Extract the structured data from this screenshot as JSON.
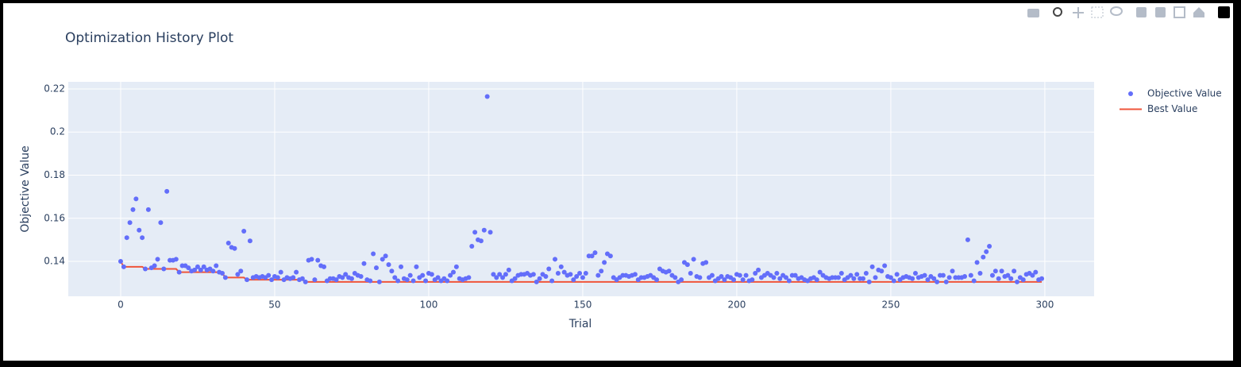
{
  "chart_data": {
    "type": "scatter-line",
    "title": "Optimization History Plot",
    "x_label": "Trial",
    "y_label": "Objective Value",
    "xlim": [
      -17,
      316
    ],
    "ylim": [
      0.1238,
      0.2233
    ],
    "xticks": [
      0,
      50,
      100,
      150,
      200,
      250,
      300
    ],
    "yticks": [
      0.14,
      0.16,
      0.18,
      0.2,
      0.22
    ],
    "grid": true,
    "legend": "right",
    "x": [
      0,
      1,
      2,
      3,
      4,
      5,
      6,
      7,
      8,
      9,
      10,
      11,
      12,
      13,
      14,
      15,
      16,
      17,
      18,
      19,
      20,
      21,
      22,
      23,
      24,
      25,
      26,
      27,
      28,
      29,
      30,
      31,
      32,
      33,
      34,
      35,
      36,
      37,
      38,
      39,
      40,
      41,
      42,
      43,
      44,
      45,
      46,
      47,
      48,
      49,
      50,
      51,
      52,
      53,
      54,
      55,
      56,
      57,
      58,
      59,
      60,
      61,
      62,
      63,
      64,
      65,
      66,
      67,
      68,
      69,
      70,
      71,
      72,
      73,
      74,
      75,
      76,
      77,
      78,
      79,
      80,
      81,
      82,
      83,
      84,
      85,
      86,
      87,
      88,
      89,
      90,
      91,
      92,
      93,
      94,
      95,
      96,
      97,
      98,
      99,
      100,
      101,
      102,
      103,
      104,
      105,
      106,
      107,
      108,
      109,
      110,
      111,
      112,
      113,
      114,
      115,
      116,
      117,
      118,
      119,
      120,
      121,
      122,
      123,
      124,
      125,
      126,
      127,
      128,
      129,
      130,
      131,
      132,
      133,
      134,
      135,
      136,
      137,
      138,
      139,
      140,
      141,
      142,
      143,
      144,
      145,
      146,
      147,
      148,
      149,
      150,
      151,
      152,
      153,
      154,
      155,
      156,
      157,
      158,
      159,
      160,
      161,
      162,
      163,
      164,
      165,
      166,
      167,
      168,
      169,
      170,
      171,
      172,
      173,
      174,
      175,
      176,
      177,
      178,
      179,
      180,
      181,
      182,
      183,
      184,
      185,
      186,
      187,
      188,
      189,
      190,
      191,
      192,
      193,
      194,
      195,
      196,
      197,
      198,
      199,
      200,
      201,
      202,
      203,
      204,
      205,
      206,
      207,
      208,
      209,
      210,
      211,
      212,
      213,
      214,
      215,
      216,
      217,
      218,
      219,
      220,
      221,
      222,
      223,
      224,
      225,
      226,
      227,
      228,
      229,
      230,
      231,
      232,
      233,
      234,
      235,
      236,
      237,
      238,
      239,
      240,
      241,
      242,
      243,
      244,
      245,
      246,
      247,
      248,
      249,
      250,
      251,
      252,
      253,
      254,
      255,
      256,
      257,
      258,
      259,
      260,
      261,
      262,
      263,
      264,
      265,
      266,
      267,
      268,
      269,
      270,
      271,
      272,
      273,
      274,
      275,
      276,
      277,
      278,
      279,
      280,
      281,
      282,
      283,
      284,
      285,
      286,
      287,
      288,
      289,
      290,
      291,
      292,
      293,
      294,
      295,
      296,
      297,
      298,
      299
    ],
    "series": [
      {
        "name": "Objective Value",
        "color": "#636efa",
        "mode": "markers",
        "values": [
          0.14,
          0.1375,
          0.151,
          0.158,
          0.164,
          0.169,
          0.1545,
          0.151,
          0.1365,
          0.164,
          0.137,
          0.138,
          0.141,
          0.158,
          0.1365,
          0.1725,
          0.1405,
          0.1405,
          0.141,
          0.135,
          0.138,
          0.138,
          0.137,
          0.1355,
          0.136,
          0.1375,
          0.136,
          0.1375,
          0.136,
          0.1365,
          0.1355,
          0.138,
          0.135,
          0.1345,
          0.1325,
          0.1485,
          0.1465,
          0.146,
          0.134,
          0.1355,
          0.154,
          0.1315,
          0.1495,
          0.1325,
          0.133,
          0.1325,
          0.133,
          0.1325,
          0.1335,
          0.1315,
          0.133,
          0.1325,
          0.135,
          0.1315,
          0.1325,
          0.132,
          0.1325,
          0.135,
          0.1315,
          0.132,
          0.1305,
          0.1405,
          0.141,
          0.1315,
          0.1405,
          0.138,
          0.1375,
          0.131,
          0.132,
          0.132,
          0.1315,
          0.133,
          0.1325,
          0.134,
          0.1325,
          0.132,
          0.1345,
          0.1335,
          0.133,
          0.139,
          0.1315,
          0.131,
          0.1435,
          0.137,
          0.1305,
          0.141,
          0.1425,
          0.1385,
          0.1355,
          0.1325,
          0.131,
          0.1375,
          0.132,
          0.1315,
          0.1335,
          0.131,
          0.1375,
          0.1325,
          0.1335,
          0.131,
          0.1345,
          0.134,
          0.1315,
          0.1325,
          0.131,
          0.132,
          0.131,
          0.1335,
          0.135,
          0.1375,
          0.132,
          0.1315,
          0.132,
          0.1325,
          0.147,
          0.1535,
          0.15,
          0.1495,
          0.1545,
          0.2165,
          0.1535,
          0.134,
          0.1325,
          0.134,
          0.1325,
          0.134,
          0.136,
          0.131,
          0.132,
          0.1335,
          0.134,
          0.134,
          0.1345,
          0.1335,
          0.134,
          0.1305,
          0.132,
          0.134,
          0.133,
          0.1365,
          0.131,
          0.141,
          0.1345,
          0.1375,
          0.135,
          0.1335,
          0.134,
          0.1315,
          0.133,
          0.1345,
          0.1325,
          0.1345,
          0.1425,
          0.1425,
          0.144,
          0.1335,
          0.1355,
          0.1395,
          0.1435,
          0.1425,
          0.1325,
          0.1315,
          0.1325,
          0.1335,
          0.1335,
          0.133,
          0.1335,
          0.134,
          0.1315,
          0.1325,
          0.1325,
          0.133,
          0.1335,
          0.1325,
          0.1315,
          0.1365,
          0.1355,
          0.135,
          0.1355,
          0.1335,
          0.1325,
          0.1305,
          0.1315,
          0.1395,
          0.1385,
          0.1345,
          0.141,
          0.133,
          0.1325,
          0.139,
          0.1395,
          0.1325,
          0.1335,
          0.131,
          0.132,
          0.133,
          0.1315,
          0.133,
          0.1325,
          0.1315,
          0.134,
          0.1335,
          0.1315,
          0.1335,
          0.131,
          0.1315,
          0.1345,
          0.136,
          0.1325,
          0.1335,
          0.1345,
          0.1335,
          0.1325,
          0.1345,
          0.132,
          0.1335,
          0.1325,
          0.131,
          0.1335,
          0.1335,
          0.132,
          0.1325,
          0.1315,
          0.131,
          0.132,
          0.1325,
          0.1315,
          0.135,
          0.1335,
          0.1325,
          0.132,
          0.1325,
          0.1325,
          0.1325,
          0.1345,
          0.1315,
          0.1325,
          0.1335,
          0.132,
          0.134,
          0.132,
          0.132,
          0.1345,
          0.1305,
          0.1375,
          0.1325,
          0.136,
          0.1355,
          0.138,
          0.133,
          0.1325,
          0.131,
          0.134,
          0.1315,
          0.1325,
          0.133,
          0.1325,
          0.132,
          0.1345,
          0.1325,
          0.133,
          0.1335,
          0.1315,
          0.133,
          0.132,
          0.1305,
          0.1335,
          0.1335,
          0.1305,
          0.1325,
          0.1355,
          0.1325,
          0.1325,
          0.1325,
          0.133,
          0.15,
          0.1335,
          0.131,
          0.1395,
          0.1345,
          0.142,
          0.1445,
          0.147,
          0.1335,
          0.1355,
          0.132,
          0.1355,
          0.133,
          0.1335,
          0.132,
          0.1355,
          0.1305,
          0.1325,
          0.1315,
          0.134,
          0.1345,
          0.1335,
          0.135,
          0.1315,
          0.132
        ]
      },
      {
        "name": "Best Value",
        "color": "#ef553b",
        "mode": "lines",
        "values": [
          0.14,
          0.1375,
          0.1375,
          0.1375,
          0.1375,
          0.1375,
          0.1375,
          0.1375,
          0.1365,
          0.1365,
          0.1365,
          0.1365,
          0.1365,
          0.1365,
          0.1365,
          0.1365,
          0.1365,
          0.1365,
          0.1365,
          0.135,
          0.135,
          0.135,
          0.135,
          0.135,
          0.135,
          0.135,
          0.135,
          0.135,
          0.135,
          0.135,
          0.135,
          0.135,
          0.135,
          0.1345,
          0.1325,
          0.1325,
          0.1325,
          0.1325,
          0.1325,
          0.1325,
          0.1325,
          0.1315,
          0.1315,
          0.1315,
          0.1315,
          0.1315,
          0.1315,
          0.1315,
          0.1315,
          0.1315,
          0.1315,
          0.1315,
          0.1315,
          0.1315,
          0.1315,
          0.1315,
          0.1315,
          0.1315,
          0.1315,
          0.1315,
          0.1305,
          0.1305,
          0.1305,
          0.1305,
          0.1305,
          0.1305,
          0.1305,
          0.1305,
          0.1305,
          0.1305,
          0.1305,
          0.1305,
          0.1305,
          0.1305,
          0.1305,
          0.1305,
          0.1305,
          0.1305,
          0.1305,
          0.1305,
          0.1305,
          0.1305,
          0.1305,
          0.1305,
          0.1305,
          0.1305,
          0.1305,
          0.1305,
          0.1305,
          0.1305,
          0.1305,
          0.1305,
          0.1305,
          0.1305,
          0.1305,
          0.1305,
          0.1305,
          0.1305,
          0.1305,
          0.1305,
          0.1305,
          0.1305,
          0.1305,
          0.1305,
          0.1305,
          0.1305,
          0.1305,
          0.1305,
          0.1305,
          0.1305,
          0.1305,
          0.1305,
          0.1305,
          0.1305,
          0.1305,
          0.1305,
          0.1305,
          0.1305,
          0.1305,
          0.1305,
          0.1305,
          0.1305,
          0.1305,
          0.1305,
          0.1305,
          0.1305,
          0.1305,
          0.1305,
          0.1305,
          0.1305,
          0.1305,
          0.1305,
          0.1305,
          0.1305,
          0.1305,
          0.1305,
          0.1305,
          0.1305,
          0.1305,
          0.1305,
          0.1305,
          0.1305,
          0.1305,
          0.1305,
          0.1305,
          0.1305,
          0.1305,
          0.1305,
          0.1305,
          0.1305,
          0.1305,
          0.1305,
          0.1305,
          0.1305,
          0.1305,
          0.1305,
          0.1305,
          0.1305,
          0.1305,
          0.1305,
          0.1305,
          0.1305,
          0.1305,
          0.1305,
          0.1305,
          0.1305,
          0.1305,
          0.1305,
          0.1305,
          0.1305,
          0.1305,
          0.1305,
          0.1305,
          0.1305,
          0.1305,
          0.1305,
          0.1305,
          0.1305,
          0.1305,
          0.1305,
          0.1305,
          0.1305,
          0.1305,
          0.1305,
          0.1305,
          0.1305,
          0.1305,
          0.1305,
          0.1305,
          0.1305,
          0.1305,
          0.1305,
          0.1305,
          0.1305,
          0.1305,
          0.1305,
          0.1305,
          0.1305,
          0.1305,
          0.1305,
          0.1305,
          0.1305,
          0.1305,
          0.1305,
          0.1305,
          0.1305,
          0.1305,
          0.1305,
          0.1305,
          0.1305,
          0.1305,
          0.1305,
          0.1305,
          0.1305,
          0.1305,
          0.1305,
          0.1305,
          0.1305,
          0.1305,
          0.1305,
          0.1305,
          0.1305,
          0.1305,
          0.1305,
          0.1305,
          0.1305,
          0.1305,
          0.1305,
          0.1305,
          0.1305,
          0.1305,
          0.1305,
          0.1305,
          0.1305,
          0.1305,
          0.1305,
          0.1305,
          0.1305,
          0.1305,
          0.1305,
          0.1305,
          0.1305,
          0.1305,
          0.1305,
          0.1305,
          0.1305,
          0.1305,
          0.1305,
          0.1305,
          0.1305,
          0.1305,
          0.1305,
          0.1305,
          0.1305,
          0.1305,
          0.1305,
          0.1305,
          0.1305,
          0.1305,
          0.1305,
          0.1305,
          0.1305,
          0.1305,
          0.1305,
          0.1305,
          0.1305,
          0.1305,
          0.1305,
          0.1305,
          0.1305,
          0.1305,
          0.1305,
          0.1305,
          0.1305,
          0.1305,
          0.1305,
          0.1305,
          0.1305,
          0.1305,
          0.1305,
          0.1305,
          0.1305,
          0.1305,
          0.1305,
          0.1305,
          0.1305,
          0.1305,
          0.1305,
          0.1305,
          0.1305,
          0.1305,
          0.1305,
          0.1305,
          0.1305,
          0.1305,
          0.1305,
          0.1305,
          0.1305,
          0.1305,
          0.1305
        ]
      }
    ]
  }
}
